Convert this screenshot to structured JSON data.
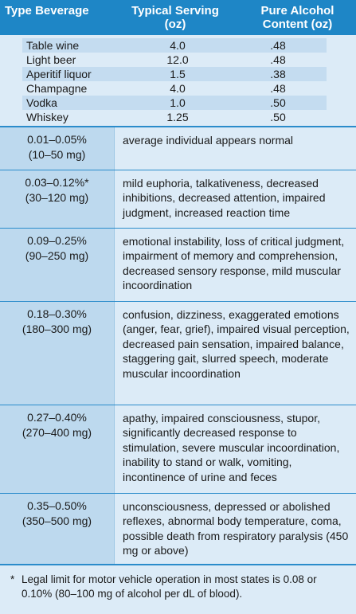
{
  "beverage_table": {
    "headers": {
      "type": "Type Beverage",
      "serving": "Typical Serving (oz)",
      "alcohol": "Pure Alcohol Content (oz)"
    },
    "rows": [
      {
        "type": "Table wine",
        "serving": "4.0",
        "alcohol": ".48"
      },
      {
        "type": "Light beer",
        "serving": "12.0",
        "alcohol": ".48"
      },
      {
        "type": "Aperitif liquor",
        "serving": "1.5",
        "alcohol": ".38"
      },
      {
        "type": "Champagne",
        "serving": "4.0",
        "alcohol": ".48"
      },
      {
        "type": "Vodka",
        "serving": "1.0",
        "alcohol": ".50"
      },
      {
        "type": "Whiskey",
        "serving": "1.25",
        "alcohol": ".50"
      }
    ]
  },
  "effects": [
    {
      "percent": "0.01–0.05%",
      "mg": "(10–50 mg)",
      "effect": "average individual appears normal"
    },
    {
      "percent": "0.03–0.12%*",
      "mg": "(30–120 mg)",
      "effect": "mild euphoria, talkativeness, decreased inhibitions, decreased attention, impaired judgment, increased reaction time"
    },
    {
      "percent": "0.09–0.25%",
      "mg": "(90–250 mg)",
      "effect": "emotional instability, loss of critical judgment, impairment of memory and comprehension, decreased sensory response, mild muscular incoordination"
    },
    {
      "percent": "0.18–0.30%",
      "mg": "(180–300 mg)",
      "effect": "confusion, dizziness, exaggerated emotions (anger, fear, grief), impaired visual perception, decreased pain sensation, impaired balance, staggering gait, slurred speech, moderate muscular incoordination"
    },
    {
      "percent": "0.27–0.40%",
      "mg": "(270–400 mg)",
      "effect": "apathy, impaired consciousness, stupor, significantly decreased response to stimulation, severe muscular incoordination, inability to stand or walk, vomiting, incontinence of urine and feces"
    },
    {
      "percent": "0.35–0.50%",
      "mg": "(350–500 mg)",
      "effect": "unconsciousness, depressed or abolished reflexes, abnormal body temperature, coma, possible death from respiratory paralysis (450 mg or above)"
    }
  ],
  "footnote": {
    "marker": "*",
    "text": "Legal limit for motor vehicle operation in most states is 0.08 or 0.10% (80–100 mg of alcohol per dL of blood)."
  },
  "colors": {
    "header_blue": "#1e86c6",
    "light_blue": "#dcebf7",
    "mid_blue": "#bdd9ee"
  }
}
